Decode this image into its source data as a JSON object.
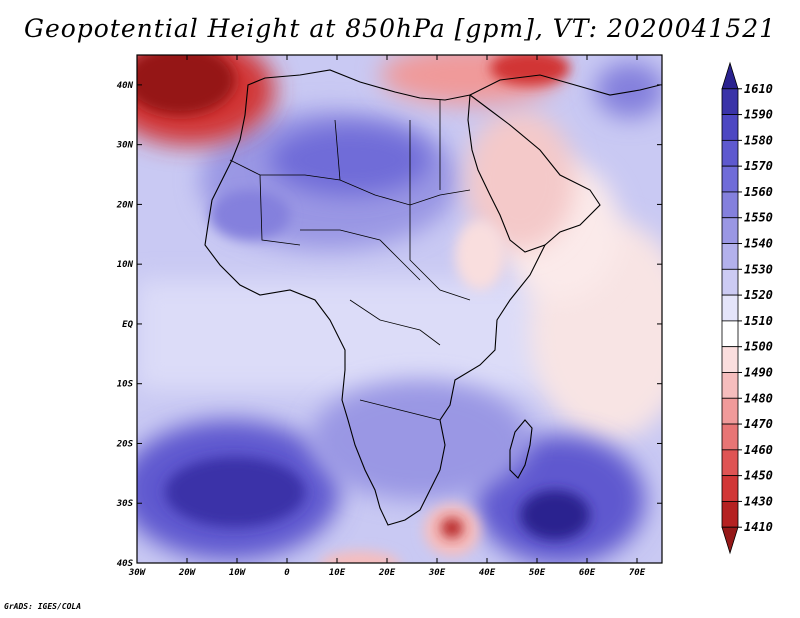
{
  "title": "Geopotential Height at 850hPa [gpm], VT: 2020041521",
  "credit": "GrADS: IGES/COLA",
  "map": {
    "lon_range": [
      -30,
      75
    ],
    "lat_range": [
      -40,
      45
    ],
    "lat_labels": [
      "40N",
      "30N",
      "20N",
      "10N",
      "EQ",
      "10S",
      "20S",
      "30S",
      "40S"
    ],
    "lat_values": [
      40,
      30,
      20,
      10,
      0,
      -10,
      -20,
      -30,
      -40
    ],
    "lon_labels": [
      "30W",
      "20W",
      "10W",
      "0",
      "10E",
      "20E",
      "30E",
      "40E",
      "50E",
      "60E",
      "70E"
    ],
    "lon_values": [
      -30,
      -20,
      -10,
      0,
      10,
      20,
      30,
      40,
      50,
      60,
      70
    ]
  },
  "colorbar": {
    "labels": [
      "1610",
      "1590",
      "1580",
      "1570",
      "1560",
      "1550",
      "1540",
      "1530",
      "1520",
      "1510",
      "1500",
      "1490",
      "1480",
      "1470",
      "1460",
      "1450",
      "1430",
      "1410"
    ],
    "colors": [
      "#2a228f",
      "#3a33a8",
      "#4d47c2",
      "#5e59cf",
      "#706cd8",
      "#8480dd",
      "#9a97e4",
      "#b3b1ec",
      "#cccbf3",
      "#e5e5fa",
      "#ffffff",
      "#fbdede",
      "#f6bdbd",
      "#f09a9a",
      "#e87575",
      "#df5454",
      "#d13636",
      "#b52121",
      "#951818"
    ]
  },
  "colors": {
    "ocean_base": "#c9c9f3",
    "deep_high": "#2a228f",
    "deep_low": "#951818",
    "coast": "#000000"
  }
}
